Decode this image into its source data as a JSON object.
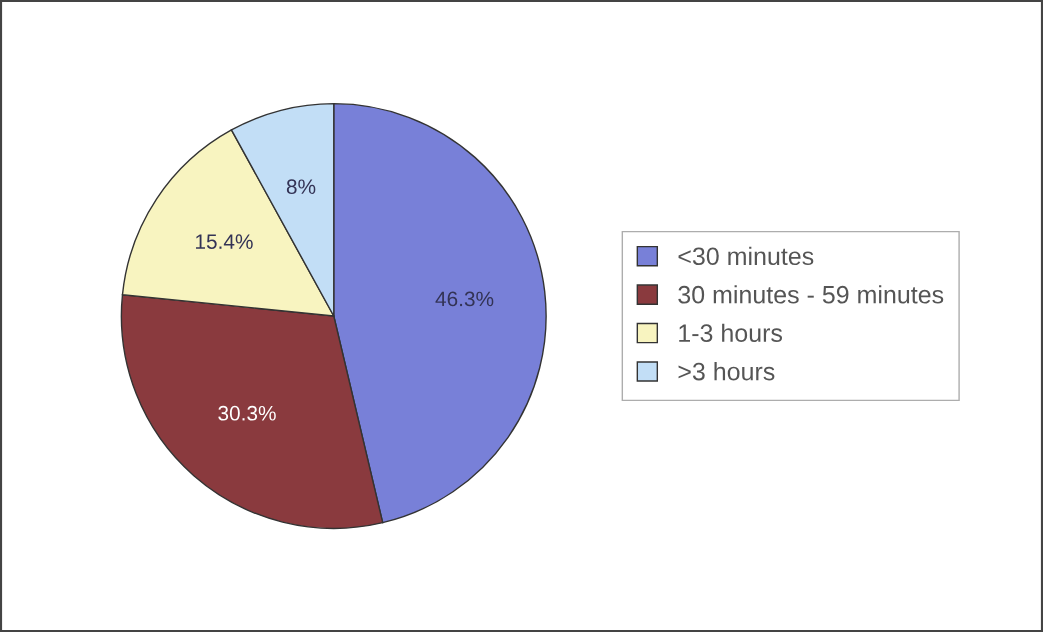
{
  "chart_data": {
    "type": "pie",
    "categories": [
      "<30 minutes",
      "30 minutes - 59 minutes",
      "1-3 hours",
      ">3 hours"
    ],
    "values": [
      46.3,
      30.3,
      15.4,
      8
    ],
    "colors": [
      "#7880d8",
      "#8a3a3e",
      "#f8f4c0",
      "#c2def6"
    ],
    "value_labels": [
      "46.3%",
      "30.3%",
      "15.4%",
      "8%"
    ],
    "legend": "right"
  }
}
